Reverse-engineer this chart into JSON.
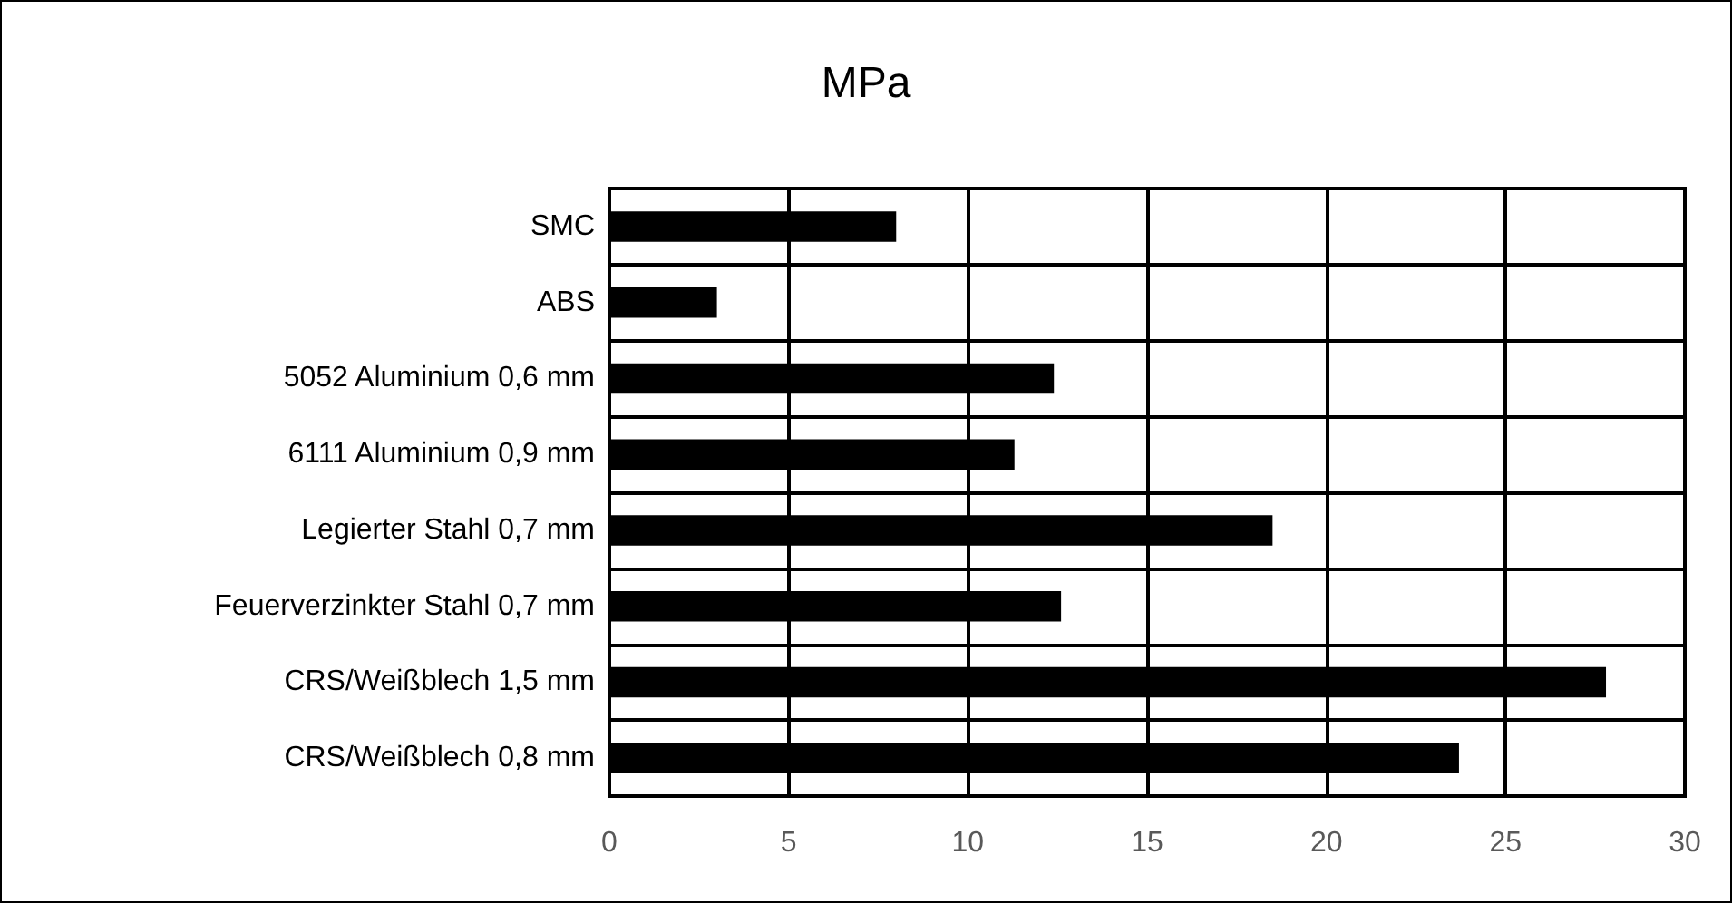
{
  "chart_data": {
    "type": "bar",
    "orientation": "horizontal",
    "title": "MPa",
    "categories": [
      "SMC",
      "ABS",
      "5052 Aluminium 0,6 mm",
      "6111 Aluminium 0,9 mm",
      "Legierter Stahl 0,7 mm",
      "Feuerverzinkter Stahl 0,7 mm",
      "CRS/Weißblech 1,5 mm",
      "CRS/Weißblech 0,8 mm"
    ],
    "values": [
      8.0,
      3.0,
      12.4,
      11.3,
      18.5,
      12.6,
      27.8,
      23.7
    ],
    "color": "#000000",
    "xlim": [
      0,
      30
    ],
    "xticks": [
      0,
      5,
      10,
      15,
      20,
      25,
      30
    ],
    "grid": true
  }
}
